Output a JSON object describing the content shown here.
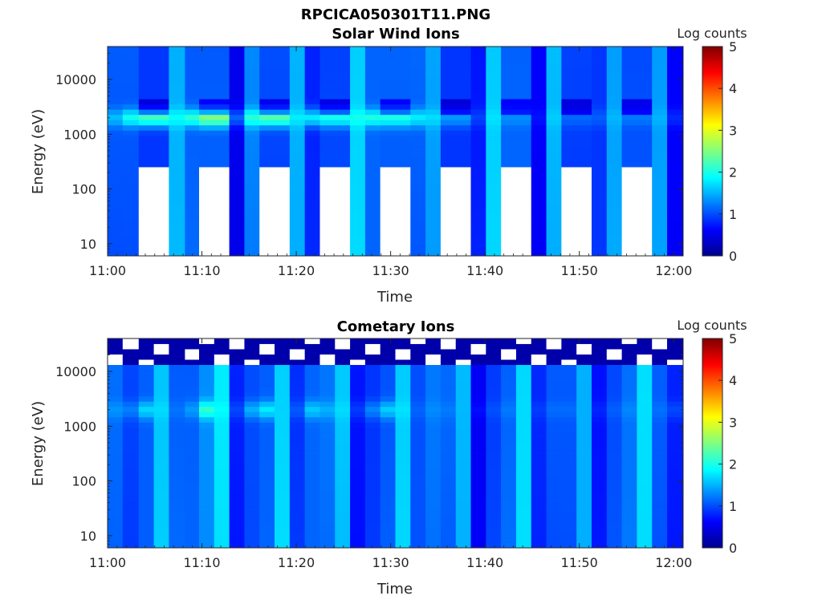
{
  "figure": {
    "filename_title": "RPCICA050301T11.PNG"
  },
  "colormap": [
    "#00008f",
    "#0000ff",
    "#0080ff",
    "#00ffff",
    "#80ff80",
    "#ffff00",
    "#ff8000",
    "#ff0000",
    "#800000"
  ],
  "chart_data": [
    {
      "type": "heatmap",
      "title": "Solar Wind Ions",
      "xlabel": "Time",
      "ylabel": "Energy (eV)",
      "x_ticks": [
        "11:00",
        "11:10",
        "11:20",
        "11:30",
        "11:40",
        "11:50",
        "12:00"
      ],
      "x_range_minutes": [
        0,
        61
      ],
      "y_ticks": [
        "10",
        "100",
        "1000",
        "10000"
      ],
      "y_scale": "log",
      "y_range": [
        6,
        40000
      ],
      "colorbar": {
        "label": "Log counts",
        "ticks": [
          "0",
          "1",
          "2",
          "3",
          "4",
          "5"
        ],
        "range": [
          0,
          5
        ]
      },
      "energy_peak_eV": 2000,
      "columns": [
        {
          "t0": 0.0,
          "t1": 1.6,
          "base": 1.0,
          "peak": 1.5,
          "gap_below": 0
        },
        {
          "t0": 1.6,
          "t1": 3.3,
          "base": 1.1,
          "peak": 2.0,
          "gap_below": 0
        },
        {
          "t0": 3.3,
          "t1": 6.5,
          "base": 1.0,
          "peak": 2.3,
          "gap_below": 280
        },
        {
          "t0": 6.5,
          "t1": 8.2,
          "base": 1.6,
          "peak": 2.0,
          "gap_below": 0
        },
        {
          "t0": 8.2,
          "t1": 9.7,
          "base": 1.1,
          "peak": 2.1,
          "gap_below": 0
        },
        {
          "t0": 9.7,
          "t1": 12.9,
          "base": 1.0,
          "peak": 2.4,
          "gap_below": 280
        },
        {
          "t0": 12.9,
          "t1": 14.5,
          "base": 0.4,
          "peak": 1.0,
          "gap_below": 0
        },
        {
          "t0": 14.5,
          "t1": 16.1,
          "base": 1.2,
          "peak": 2.0,
          "gap_below": 0
        },
        {
          "t0": 16.1,
          "t1": 19.3,
          "base": 1.0,
          "peak": 2.3,
          "gap_below": 280
        },
        {
          "t0": 19.3,
          "t1": 20.9,
          "base": 1.6,
          "peak": 1.9,
          "gap_below": 0
        },
        {
          "t0": 20.9,
          "t1": 22.5,
          "base": 0.9,
          "peak": 1.9,
          "gap_below": 0
        },
        {
          "t0": 22.5,
          "t1": 25.7,
          "base": 1.0,
          "peak": 2.0,
          "gap_below": 280
        },
        {
          "t0": 25.7,
          "t1": 27.3,
          "base": 1.6,
          "peak": 1.9,
          "gap_below": 0
        },
        {
          "t0": 27.3,
          "t1": 28.9,
          "base": 1.0,
          "peak": 1.9,
          "gap_below": 0
        },
        {
          "t0": 28.9,
          "t1": 32.1,
          "base": 1.0,
          "peak": 1.9,
          "gap_below": 280
        },
        {
          "t0": 32.1,
          "t1": 33.7,
          "base": 1.1,
          "peak": 1.8,
          "gap_below": 0
        },
        {
          "t0": 33.7,
          "t1": 35.3,
          "base": 1.5,
          "peak": 1.8,
          "gap_below": 0
        },
        {
          "t0": 35.3,
          "t1": 38.5,
          "base": 1.0,
          "peak": 1.5,
          "gap_below": 280
        },
        {
          "t0": 38.5,
          "t1": 40.1,
          "base": 0.8,
          "peak": 1.0,
          "gap_below": 0
        },
        {
          "t0": 40.1,
          "t1": 41.7,
          "base": 1.6,
          "peak": 1.7,
          "gap_below": 0
        },
        {
          "t0": 41.7,
          "t1": 44.9,
          "base": 1.0,
          "peak": 1.2,
          "gap_below": 280
        },
        {
          "t0": 44.9,
          "t1": 46.5,
          "base": 0.5,
          "peak": 0.6,
          "gap_below": 0
        },
        {
          "t0": 46.5,
          "t1": 48.1,
          "base": 1.5,
          "peak": 1.6,
          "gap_below": 0
        },
        {
          "t0": 48.1,
          "t1": 51.3,
          "base": 1.0,
          "peak": 1.2,
          "gap_below": 280
        },
        {
          "t0": 51.3,
          "t1": 52.9,
          "base": 1.0,
          "peak": 1.2,
          "gap_below": 0
        },
        {
          "t0": 52.9,
          "t1": 54.5,
          "base": 1.5,
          "peak": 1.6,
          "gap_below": 0
        },
        {
          "t0": 54.5,
          "t1": 57.7,
          "base": 1.0,
          "peak": 1.2,
          "gap_below": 280
        },
        {
          "t0": 57.7,
          "t1": 59.3,
          "base": 1.3,
          "peak": 1.4,
          "gap_below": 0
        },
        {
          "t0": 59.3,
          "t1": 61.0,
          "base": 0.5,
          "peak": 0.7,
          "gap_below": 0
        }
      ]
    },
    {
      "type": "heatmap",
      "title": "Cometary Ions",
      "xlabel": "Time",
      "ylabel": "Energy (eV)",
      "x_ticks": [
        "11:00",
        "11:10",
        "11:20",
        "11:30",
        "11:40",
        "11:50",
        "12:00"
      ],
      "x_range_minutes": [
        0,
        61
      ],
      "y_ticks": [
        "10",
        "100",
        "1000",
        "10000"
      ],
      "y_scale": "log",
      "y_range": [
        6,
        40000
      ],
      "colorbar": {
        "label": "Log counts",
        "ticks": [
          "0",
          "1",
          "2",
          "3",
          "4",
          "5"
        ],
        "range": [
          0,
          5
        ]
      },
      "energy_peak_eV": 2000,
      "columns": [
        {
          "t0": 0.0,
          "t1": 1.6,
          "base": 1.1,
          "peak": 1.3
        },
        {
          "t0": 1.6,
          "t1": 3.3,
          "base": 1.0,
          "peak": 1.3
        },
        {
          "t0": 3.3,
          "t1": 4.9,
          "base": 1.2,
          "peak": 1.8
        },
        {
          "t0": 4.9,
          "t1": 6.5,
          "base": 1.7,
          "peak": 1.8
        },
        {
          "t0": 6.5,
          "t1": 8.2,
          "base": 1.1,
          "peak": 1.2
        },
        {
          "t0": 8.2,
          "t1": 9.7,
          "base": 1.0,
          "peak": 1.3
        },
        {
          "t0": 9.7,
          "t1": 11.3,
          "base": 1.2,
          "peak": 2.0
        },
        {
          "t0": 11.3,
          "t1": 12.9,
          "base": 1.7,
          "peak": 1.8
        },
        {
          "t0": 12.9,
          "t1": 14.5,
          "base": 0.8,
          "peak": 1.0
        },
        {
          "t0": 14.5,
          "t1": 16.1,
          "base": 1.1,
          "peak": 1.6
        },
        {
          "t0": 16.1,
          "t1": 17.7,
          "base": 1.2,
          "peak": 1.9
        },
        {
          "t0": 17.7,
          "t1": 19.3,
          "base": 1.7,
          "peak": 1.7
        },
        {
          "t0": 19.3,
          "t1": 20.9,
          "base": 0.8,
          "peak": 1.0
        },
        {
          "t0": 20.9,
          "t1": 22.5,
          "base": 1.0,
          "peak": 1.5
        },
        {
          "t0": 22.5,
          "t1": 24.1,
          "base": 1.1,
          "peak": 1.4
        },
        {
          "t0": 24.1,
          "t1": 25.7,
          "base": 1.6,
          "peak": 1.7
        },
        {
          "t0": 25.7,
          "t1": 27.3,
          "base": 0.8,
          "peak": 1.0
        },
        {
          "t0": 27.3,
          "t1": 28.9,
          "base": 1.0,
          "peak": 1.4
        },
        {
          "t0": 28.9,
          "t1": 30.5,
          "base": 1.1,
          "peak": 1.7
        },
        {
          "t0": 30.5,
          "t1": 32.1,
          "base": 1.6,
          "peak": 1.7
        },
        {
          "t0": 32.1,
          "t1": 33.7,
          "base": 0.9,
          "peak": 1.0
        },
        {
          "t0": 33.7,
          "t1": 35.3,
          "base": 1.1,
          "peak": 1.2
        },
        {
          "t0": 35.3,
          "t1": 36.9,
          "base": 1.1,
          "peak": 1.2
        },
        {
          "t0": 36.9,
          "t1": 38.5,
          "base": 1.6,
          "peak": 1.6
        },
        {
          "t0": 38.5,
          "t1": 40.1,
          "base": 0.7,
          "peak": 0.8
        },
        {
          "t0": 40.1,
          "t1": 41.7,
          "base": 1.0,
          "peak": 1.1
        },
        {
          "t0": 41.7,
          "t1": 43.3,
          "base": 1.1,
          "peak": 1.2
        },
        {
          "t0": 43.3,
          "t1": 44.9,
          "base": 1.6,
          "peak": 1.6
        },
        {
          "t0": 44.9,
          "t1": 46.5,
          "base": 0.7,
          "peak": 0.8
        },
        {
          "t0": 46.5,
          "t1": 48.1,
          "base": 1.0,
          "peak": 1.1
        },
        {
          "t0": 48.1,
          "t1": 49.7,
          "base": 1.1,
          "peak": 1.2
        },
        {
          "t0": 49.7,
          "t1": 51.3,
          "base": 1.6,
          "peak": 1.6
        },
        {
          "t0": 51.3,
          "t1": 52.9,
          "base": 0.8,
          "peak": 0.9
        },
        {
          "t0": 52.9,
          "t1": 54.5,
          "base": 1.0,
          "peak": 1.1
        },
        {
          "t0": 54.5,
          "t1": 56.1,
          "base": 1.1,
          "peak": 1.2
        },
        {
          "t0": 56.1,
          "t1": 57.7,
          "base": 1.6,
          "peak": 1.6
        },
        {
          "t0": 57.7,
          "t1": 59.3,
          "base": 1.0,
          "peak": 1.1
        },
        {
          "t0": 59.3,
          "t1": 61.0,
          "base": 0.8,
          "peak": 1.0
        }
      ]
    }
  ]
}
